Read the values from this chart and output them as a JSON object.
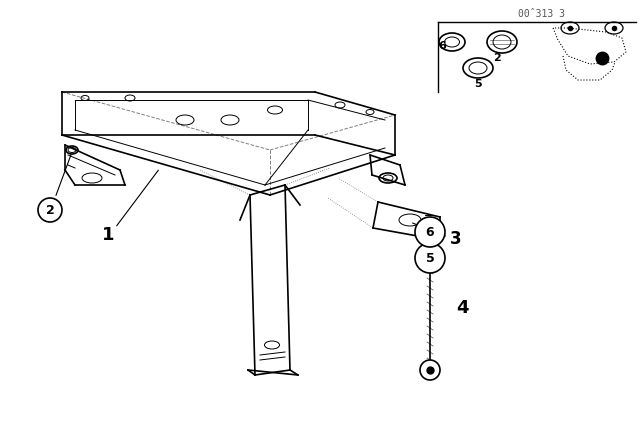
{
  "background_color": "#ffffff",
  "line_color": "#000000",
  "watermark": "00̂313 3",
  "fig_width": 6.4,
  "fig_height": 4.48,
  "dpi": 100,
  "lw_main": 1.2,
  "lw_thin": 0.7,
  "lw_dot": 0.6
}
